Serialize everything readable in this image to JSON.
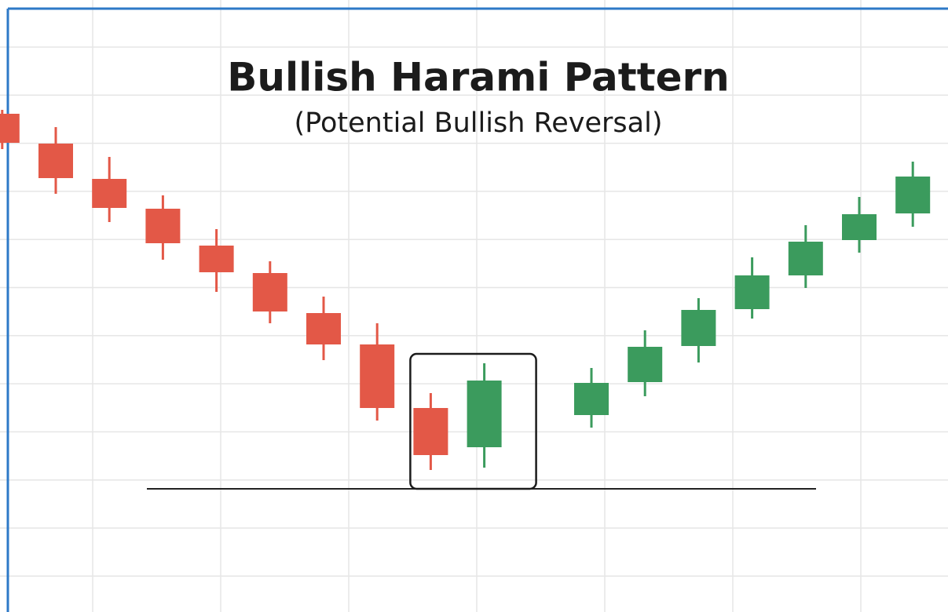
{
  "chart_data": {
    "type": "candlestick",
    "title": "Bullish Harami Pattern",
    "subtitle": "(Potential Bullish Reversal)",
    "open": [
      63.5,
      59.7,
      55.2,
      51.4,
      46.7,
      43.2,
      38.1,
      34.1,
      26.0,
      21.0,
      null,
      25.1,
      29.3,
      33.9,
      38.6,
      42.9,
      47.4,
      50.8
    ],
    "high": [
      64.0,
      61.8,
      58.0,
      53.1,
      48.8,
      44.7,
      40.2,
      36.8,
      27.9,
      31.7,
      null,
      31.1,
      35.9,
      40.0,
      45.2,
      49.3,
      52.9,
      57.4
    ],
    "low": [
      59.0,
      53.3,
      49.7,
      44.9,
      40.8,
      36.8,
      32.1,
      24.4,
      18.1,
      18.4,
      null,
      23.5,
      27.5,
      31.8,
      37.4,
      41.3,
      45.8,
      49.1
    ],
    "close": [
      59.8,
      55.3,
      51.5,
      47.0,
      43.3,
      38.3,
      34.1,
      26.0,
      20.0,
      29.5,
      null,
      29.2,
      33.8,
      38.5,
      42.9,
      47.2,
      50.7,
      55.5
    ],
    "up_color": "#3b9b5d",
    "down_color": "#e35847",
    "support_level": 15.7,
    "ylim": [
      0,
      78
    ],
    "grid": true
  }
}
